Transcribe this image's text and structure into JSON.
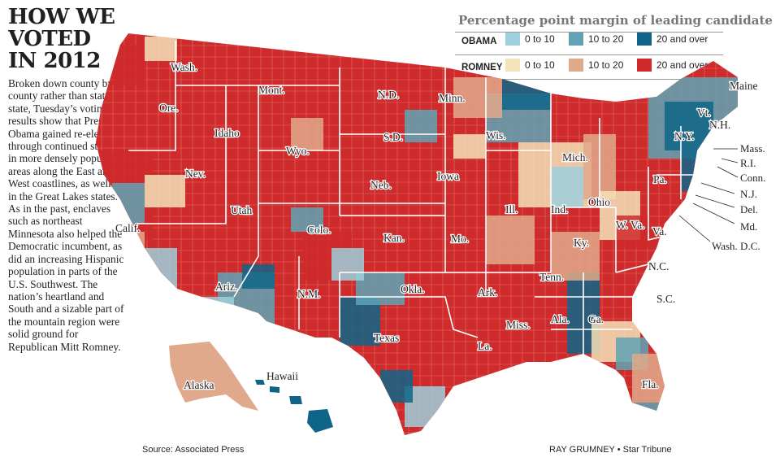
{
  "title": {
    "line1": "HOW WE",
    "line2": "VOTED",
    "line3": "IN 2012"
  },
  "body": "Broken down county by county rather than state by state, Tuesday’s voting results show that President Obama gained re-election through continued strength in more densely populated areas along the East and West coastlines, as well as in the Great Lakes states. As in the past, enclaves such as northeast Minnesota also helped the Democratic incumbent, as did an increasing Hispanic population in parts of the U.S. Southwest. The nation’s heartland and South and a sizable part of the mountain region were solid ground for Republican Mitt Romney.",
  "legend": {
    "title": "Percentage point margin of leading candidate",
    "obama": {
      "name": "OBAMA",
      "bins": [
        "0 to 10",
        "10 to 20",
        "20 and over"
      ],
      "colors": [
        "#9ecfdc",
        "#5fa3b5",
        "#0e6587"
      ]
    },
    "romney": {
      "name": "ROMNEY",
      "bins": [
        "0 to 10",
        "10 to 20",
        "20 and over"
      ],
      "colors": [
        "#f4e2b8",
        "#e0a98b",
        "#cf2a2c"
      ]
    }
  },
  "states": [
    "Wash.",
    "Ore.",
    "Idaho",
    "Mont.",
    "Wyo.",
    "Nev.",
    "Utah",
    "Calif.",
    "Colo.",
    "Ariz.",
    "N.M.",
    "N.D.",
    "S.D.",
    "Neb.",
    "Kan.",
    "Okla.",
    "Texas",
    "Minn.",
    "Iowa",
    "Mo.",
    "Ark.",
    "La.",
    "Wis.",
    "Ill.",
    "Mich.",
    "Ind.",
    "Ohio",
    "Ky.",
    "Tenn.",
    "Miss.",
    "Ala.",
    "Ga.",
    "Fla.",
    "S.C.",
    "N.C.",
    "Va.",
    "W. Va.",
    "Pa.",
    "N.Y.",
    "Maine",
    "Vt.",
    "N.H.",
    "Alaska",
    "Hawaii"
  ],
  "callouts": [
    "Mass.",
    "R.I.",
    "Conn.",
    "N.J.",
    "Del.",
    "Md.",
    "Wash. D.C."
  ],
  "source": "Source: Associated Press",
  "credit": "RAY GRUMNEY • Star Tribune"
}
